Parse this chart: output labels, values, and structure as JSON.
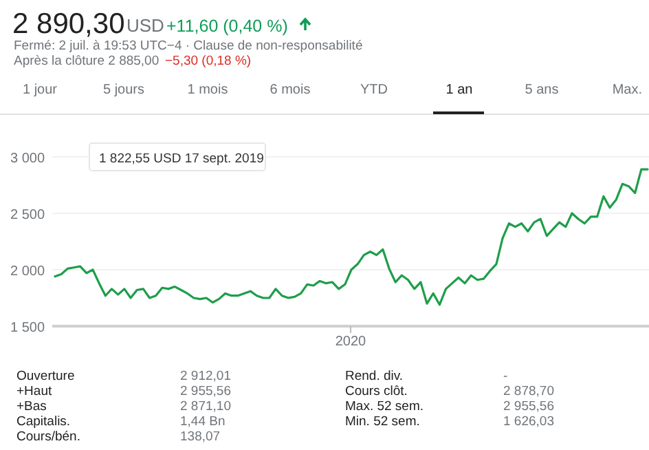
{
  "chart_data": {
    "type": "line",
    "title": "2 890,30",
    "annotations": [
      "USD",
      "+11,60 (0,40 %)",
      "Fermé: 2 juil. à 19:53 UTC−4 · Clause de non-responsabilité",
      "Après la clôture 2 885,00",
      "−5,30 (0,18 %)",
      "1 jour",
      "5 jours",
      "1 mois",
      "6 mois",
      "YTD",
      "1 an",
      "5 ans",
      "Max.",
      "Ouverture",
      "2 912,01",
      "+Haut",
      "2 955,56",
      "+Bas",
      "2 871,10",
      "Capitalis.",
      "1,44 Bn",
      "Cours/bén.",
      "138,07",
      "Rend. div.",
      "-",
      "Cours clôt.",
      "2 878,70",
      "Max. 52 sem.",
      "2 955,56",
      "Min. 52 sem.",
      "1 626,03",
      "2020",
      "1 822,55 USD 17 sept. 2019"
    ],
    "categories": [
      null,
      null,
      null,
      null,
      null,
      null,
      null,
      null,
      null,
      null,
      null,
      null,
      null,
      null,
      null,
      null,
      null,
      null,
      null,
      null,
      null,
      null,
      null,
      null,
      null,
      null,
      null,
      null,
      null,
      null,
      null,
      null,
      null,
      null,
      null,
      null,
      null,
      null,
      null,
      null,
      null,
      null,
      null,
      null,
      null,
      null,
      null,
      null,
      null,
      null,
      null,
      null,
      null,
      null,
      null,
      null,
      null,
      null,
      null,
      null,
      null,
      null,
      null,
      null,
      null,
      null,
      null,
      null,
      null,
      null,
      null,
      null,
      null,
      null,
      null,
      null,
      null,
      null,
      null,
      null,
      null,
      null,
      null,
      null,
      null,
      null,
      null,
      null,
      null,
      null,
      null,
      null,
      null,
      null,
      null
    ],
    "ylim": [
      1500,
      3000
    ],
    "yticks": [
      {
        "value": 1500,
        "label": "1 500"
      },
      {
        "value": 2000,
        "label": "2 000"
      },
      {
        "value": 2500,
        "label": "2 500"
      },
      {
        "value": 3000,
        "label": "3 000"
      }
    ],
    "grid": "y",
    "marker": "none",
    "line_style": "solid",
    "series": [
      {
        "color": "#1e9e4a",
        "values": [
          1940,
          1960,
          2010,
          2020,
          2030,
          1970,
          2000,
          1880,
          1770,
          1830,
          1780,
          1830,
          1750,
          1820,
          1830,
          1750,
          1770,
          1840,
          1830,
          1850,
          1820,
          1790,
          1750,
          1740,
          1750,
          1710,
          1740,
          1790,
          1770,
          1770,
          1790,
          1810,
          1770,
          1750,
          1750,
          1830,
          1770,
          1750,
          1760,
          1790,
          1870,
          1860,
          1900,
          1880,
          1890,
          1830,
          1870,
          2000,
          2050,
          2130,
          2160,
          2130,
          2180,
          2010,
          1890,
          1950,
          1910,
          1830,
          1890,
          1700,
          1790,
          1690,
          1830,
          1880,
          1930,
          1880,
          1950,
          1910,
          1920,
          1990,
          2050,
          2280,
          2410,
          2380,
          2410,
          2340,
          2420,
          2450,
          2300,
          2360,
          2420,
          2380,
          2500,
          2450,
          2410,
          2470,
          2470,
          2650,
          2550,
          2620,
          2760,
          2740,
          2680,
          2890,
          2890
        ]
      }
    ]
  }
}
